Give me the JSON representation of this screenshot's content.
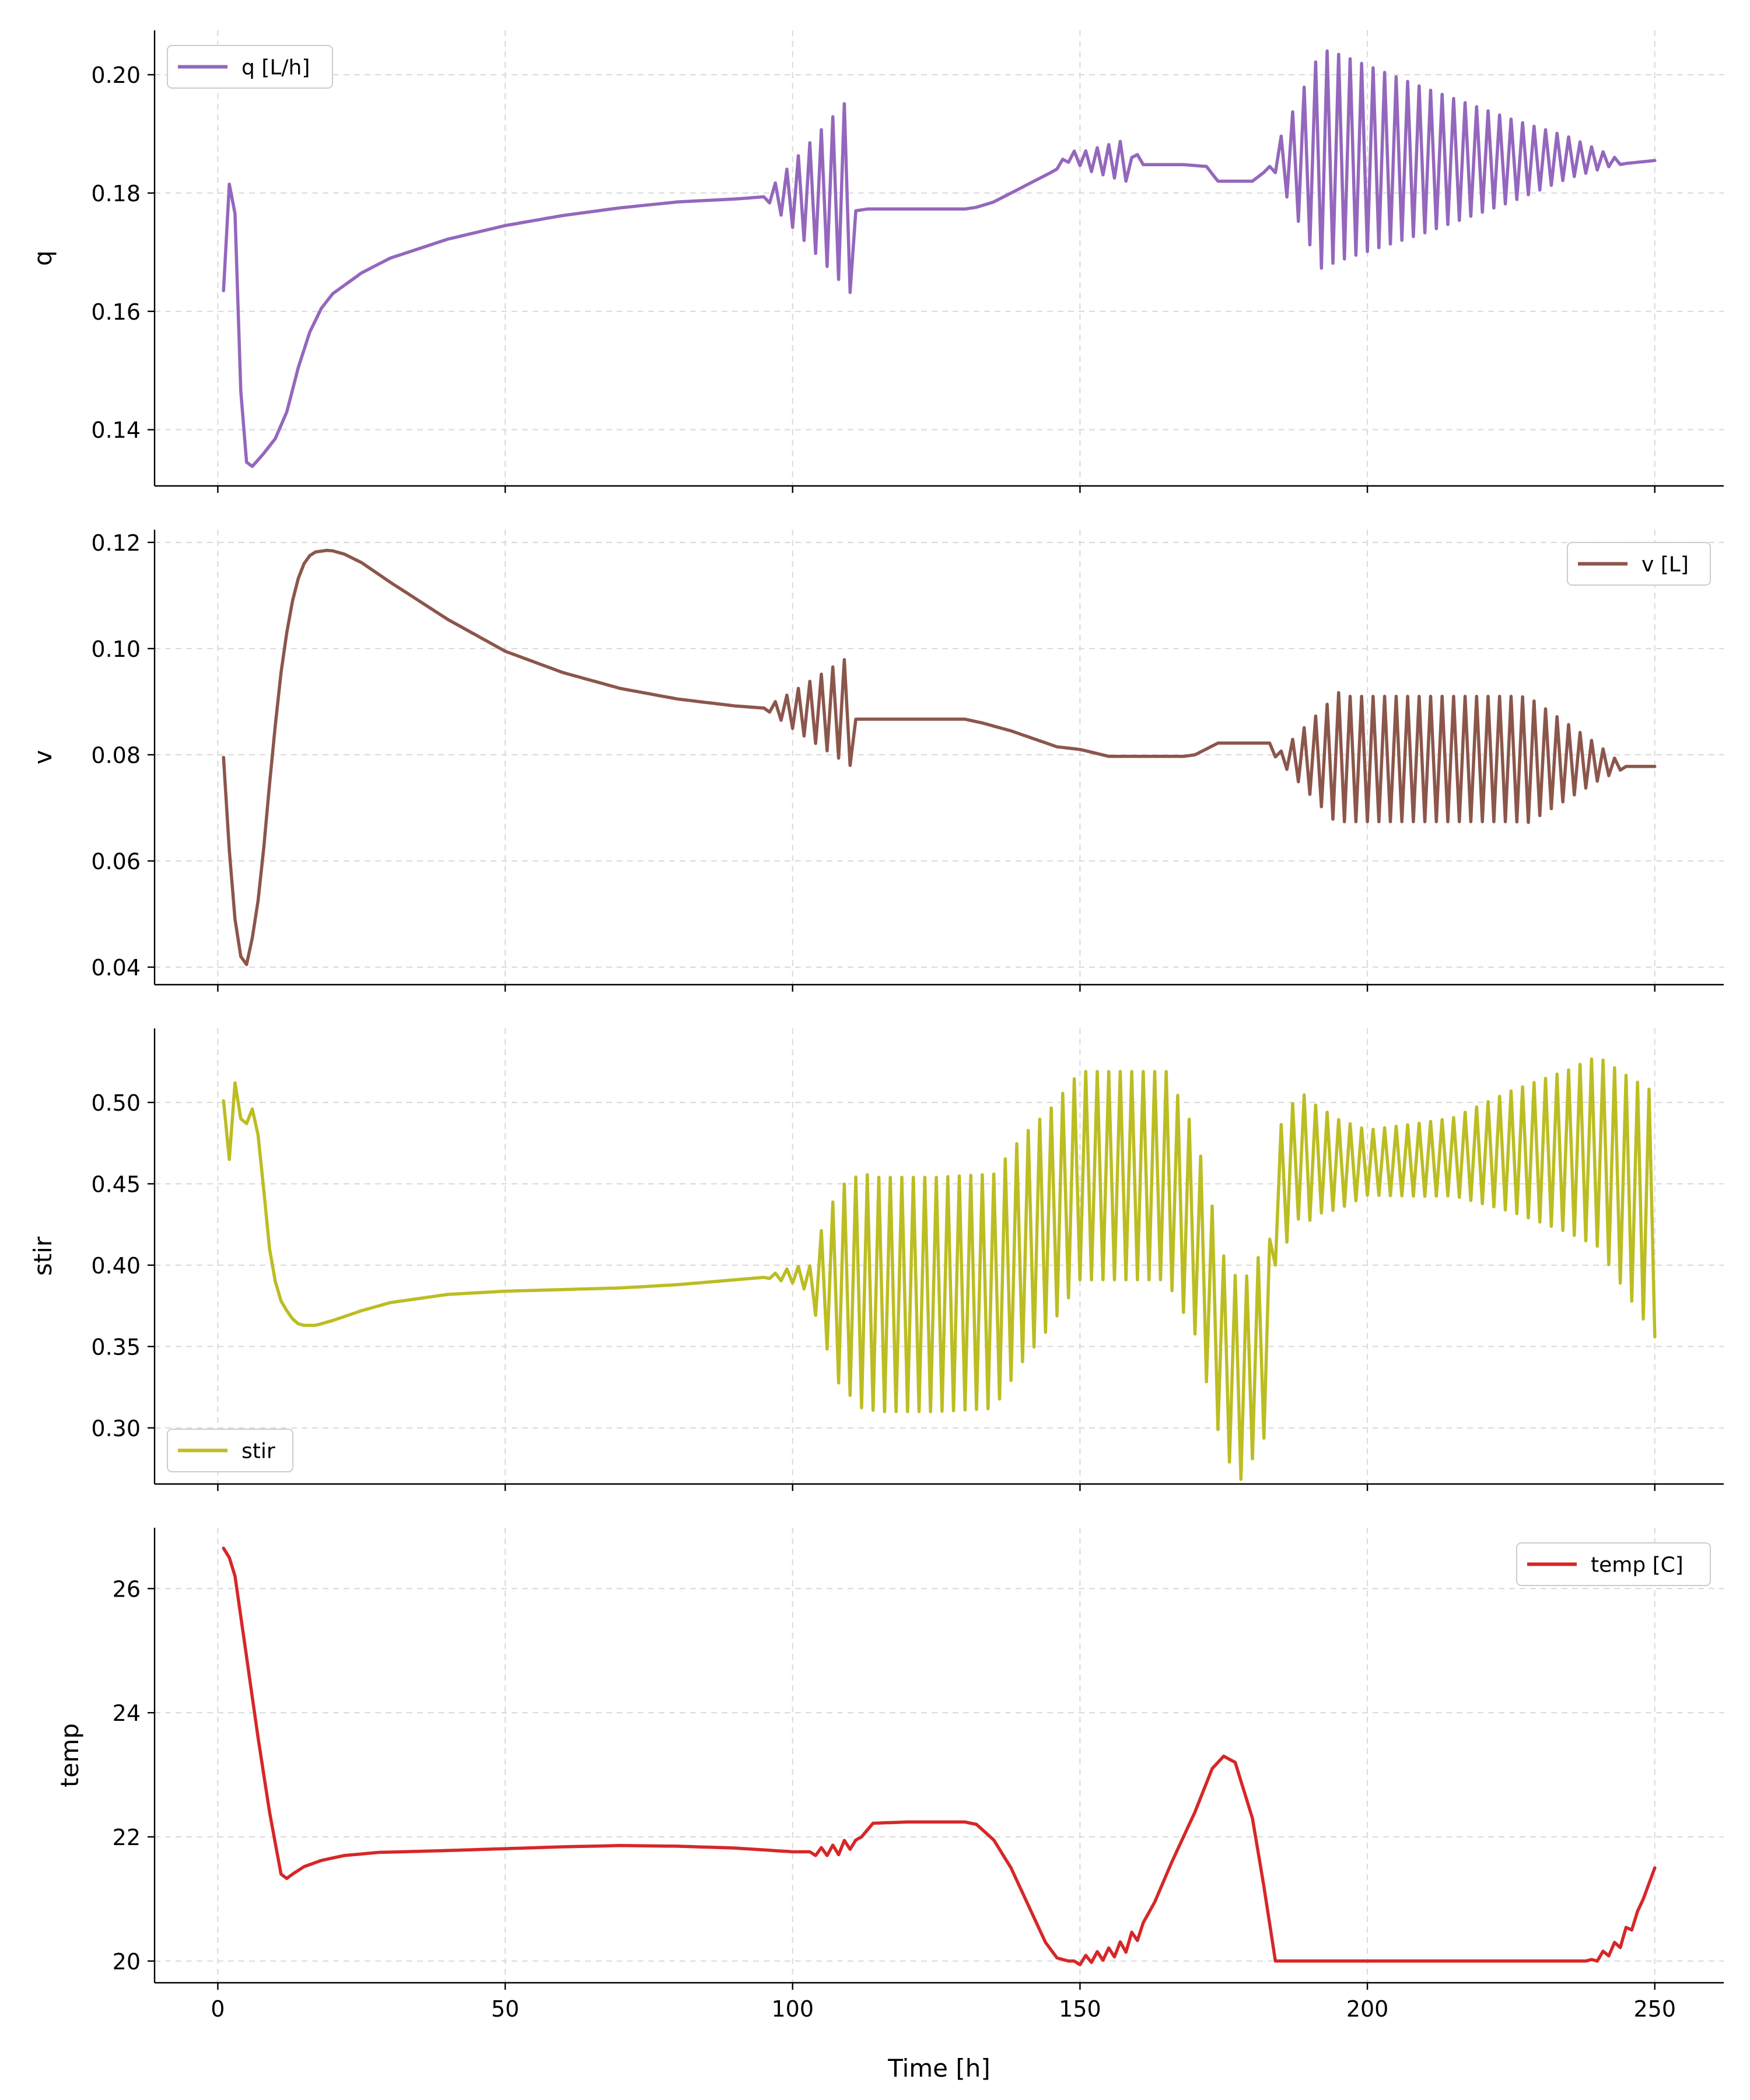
{
  "chart_data": [
    {
      "type": "line",
      "ylabel": "q",
      "xlim": [
        -11,
        262
      ],
      "ylim": [
        0.1305,
        0.2075
      ],
      "yticks": [
        "0.14",
        "0.16",
        "0.18",
        "0.20"
      ],
      "ytick_values": [
        0.14,
        0.16,
        0.18,
        0.2
      ],
      "grid": true,
      "legend_position": "upper left",
      "color": "#9467bd",
      "series": [
        {
          "name": "q [L/h]",
          "x": [],
          "y": []
        }
      ],
      "key_points": [
        [
          1,
          0.1635
        ],
        [
          2,
          0.1815
        ],
        [
          3,
          0.1765
        ],
        [
          4,
          0.1465
        ],
        [
          5,
          0.1345
        ],
        [
          6,
          0.1338
        ],
        [
          8,
          0.136
        ],
        [
          10,
          0.1385
        ],
        [
          12,
          0.143
        ],
        [
          14,
          0.1505
        ],
        [
          16,
          0.1565
        ],
        [
          18,
          0.1605
        ],
        [
          20,
          0.163
        ],
        [
          25,
          0.1665
        ],
        [
          30,
          0.169
        ],
        [
          40,
          0.1722
        ],
        [
          50,
          0.1745
        ],
        [
          60,
          0.1762
        ],
        [
          70,
          0.1775
        ],
        [
          80,
          0.1785
        ],
        [
          90,
          0.179
        ],
        [
          97,
          0.1795
        ],
        [
          100,
          0.1797
        ],
        [
          104,
          0.1797
        ],
        [
          107,
          0.1797
        ],
        [
          108.5,
          0.1797
        ],
        [
          110,
          0.1797
        ],
        [
          111,
          0.177
        ],
        [
          113,
          0.1773
        ],
        [
          120,
          0.1773
        ],
        [
          130,
          0.1773
        ],
        [
          132,
          0.1776
        ],
        [
          135,
          0.1785
        ],
        [
          140,
          0.181
        ],
        [
          145,
          0.1835
        ],
        [
          148,
          0.186
        ],
        [
          150,
          0.186
        ],
        [
          151,
          0.1855
        ],
        [
          155,
          0.1855
        ],
        [
          158,
          0.1855
        ],
        [
          160,
          0.1865
        ],
        [
          161,
          0.1848
        ],
        [
          168,
          0.1848
        ],
        [
          172,
          0.1845
        ],
        [
          174,
          0.182
        ],
        [
          180,
          0.182
        ],
        [
          182,
          0.1835
        ],
        [
          184,
          0.1855
        ],
        [
          188,
          0.1855
        ],
        [
          195,
          0.186
        ],
        [
          210,
          0.1855
        ],
        [
          225,
          0.1855
        ],
        [
          235,
          0.186
        ],
        [
          242,
          0.1855
        ],
        [
          245,
          0.185
        ],
        [
          250,
          0.1855
        ]
      ],
      "oscillations": [
        [
          95,
          110,
          0.0,
          0.0165
        ],
        [
          145,
          158,
          0.0,
          0.0035
        ],
        [
          183,
          192,
          0.0,
          0.0185
        ],
        [
          192,
          245,
          0.0185,
          0.0
        ]
      ]
    },
    {
      "type": "line",
      "ylabel": "v",
      "xlim": [
        -11,
        262
      ],
      "ylim": [
        0.0367,
        0.1224
      ],
      "yticks": [
        "0.04",
        "0.06",
        "0.08",
        "0.10",
        "0.12"
      ],
      "ytick_values": [
        0.04,
        0.06,
        0.08,
        0.1,
        0.12
      ],
      "grid": true,
      "legend_position": "upper right",
      "color": "#8c564b",
      "series": [
        {
          "name": "v [L]",
          "x": [],
          "y": []
        }
      ],
      "key_points": [
        [
          1,
          0.0795
        ],
        [
          2,
          0.062
        ],
        [
          3,
          0.049
        ],
        [
          4,
          0.042
        ],
        [
          5,
          0.0405
        ],
        [
          6,
          0.0455
        ],
        [
          7,
          0.0525
        ],
        [
          8,
          0.0625
        ],
        [
          9,
          0.0745
        ],
        [
          10,
          0.0855
        ],
        [
          11,
          0.0955
        ],
        [
          12,
          0.103
        ],
        [
          13,
          0.109
        ],
        [
          14,
          0.1132
        ],
        [
          15,
          0.116
        ],
        [
          16,
          0.1175
        ],
        [
          17,
          0.1182
        ],
        [
          19,
          0.1185
        ],
        [
          20,
          0.1184
        ],
        [
          22,
          0.1178
        ],
        [
          25,
          0.1162
        ],
        [
          30,
          0.1125
        ],
        [
          40,
          0.1055
        ],
        [
          50,
          0.0995
        ],
        [
          60,
          0.0955
        ],
        [
          70,
          0.0925
        ],
        [
          80,
          0.0905
        ],
        [
          90,
          0.0892
        ],
        [
          100,
          0.0884
        ],
        [
          105,
          0.0883
        ],
        [
          110,
          0.0883
        ],
        [
          111,
          0.0867
        ],
        [
          120,
          0.0867
        ],
        [
          130,
          0.0867
        ],
        [
          133,
          0.086
        ],
        [
          138,
          0.0845
        ],
        [
          142,
          0.083
        ],
        [
          146,
          0.0815
        ],
        [
          150,
          0.081
        ],
        [
          152,
          0.0805
        ],
        [
          155,
          0.0797
        ],
        [
          160,
          0.0797
        ],
        [
          168,
          0.0797
        ],
        [
          170,
          0.08
        ],
        [
          174,
          0.0822
        ],
        [
          180,
          0.0822
        ],
        [
          183,
          0.0822
        ],
        [
          184,
          0.0796
        ],
        [
          195,
          0.0792
        ],
        [
          210,
          0.0792
        ],
        [
          225,
          0.0792
        ],
        [
          240,
          0.0785
        ],
        [
          244,
          0.0778
        ],
        [
          250,
          0.0778
        ]
      ],
      "oscillations": [
        [
          95,
          110,
          0.0,
          0.0103
        ],
        [
          184,
          195,
          0.0,
          0.0125
        ],
        [
          195,
          228,
          0.0118,
          0.0118
        ],
        [
          228,
          245,
          0.0118,
          0.0
        ]
      ]
    },
    {
      "type": "line",
      "ylabel": "stir",
      "xlim": [
        -11,
        262
      ],
      "ylim": [
        0.2655,
        0.5455
      ],
      "yticks": [
        "0.30",
        "0.35",
        "0.40",
        "0.45",
        "0.50"
      ],
      "ytick_values": [
        0.3,
        0.35,
        0.4,
        0.45,
        0.5
      ],
      "grid": true,
      "legend_position": "lower left",
      "color": "#bcbd22",
      "series": [
        {
          "name": "stir",
          "x": [],
          "y": []
        }
      ],
      "key_points": [
        [
          1,
          0.501
        ],
        [
          2,
          0.465
        ],
        [
          3,
          0.512
        ],
        [
          4,
          0.49
        ],
        [
          5,
          0.487
        ],
        [
          6,
          0.496
        ],
        [
          7,
          0.48
        ],
        [
          8,
          0.446
        ],
        [
          9,
          0.41
        ],
        [
          10,
          0.39
        ],
        [
          11,
          0.378
        ],
        [
          12,
          0.372
        ],
        [
          13,
          0.367
        ],
        [
          14,
          0.364
        ],
        [
          15,
          0.363
        ],
        [
          17,
          0.363
        ],
        [
          20,
          0.366
        ],
        [
          25,
          0.372
        ],
        [
          30,
          0.377
        ],
        [
          40,
          0.382
        ],
        [
          50,
          0.384
        ],
        [
          60,
          0.385
        ],
        [
          70,
          0.386
        ],
        [
          80,
          0.388
        ],
        [
          90,
          0.391
        ],
        [
          100,
          0.394
        ],
        [
          105,
          0.39
        ],
        [
          110,
          0.386
        ],
        [
          115,
          0.382
        ],
        [
          125,
          0.382
        ],
        [
          135,
          0.384
        ],
        [
          140,
          0.41
        ],
        [
          145,
          0.43
        ],
        [
          150,
          0.455
        ],
        [
          160,
          0.455
        ],
        [
          165,
          0.455
        ],
        [
          170,
          0.42
        ],
        [
          175,
          0.345
        ],
        [
          178,
          0.328
        ],
        [
          183,
          0.358
        ],
        [
          184,
          0.44
        ],
        [
          188,
          0.467
        ],
        [
          195,
          0.462
        ],
        [
          210,
          0.465
        ],
        [
          225,
          0.47
        ],
        [
          240,
          0.47
        ],
        [
          245,
          0.45
        ],
        [
          250,
          0.431
        ]
      ],
      "oscillations": [
        [
          95,
          103,
          0.0,
          0.008
        ],
        [
          103,
          108,
          0.012,
          0.06
        ],
        [
          108,
          112,
          0.06,
          0.072
        ],
        [
          112,
          135,
          0.072,
          0.072
        ],
        [
          135,
          150,
          0.072,
          0.064
        ],
        [
          150,
          165,
          0.064,
          0.064
        ],
        [
          165,
          183,
          0.064,
          0.058
        ],
        [
          184,
          190,
          0.04,
          0.038
        ],
        [
          190,
          200,
          0.035,
          0.02
        ],
        [
          200,
          215,
          0.02,
          0.024
        ],
        [
          215,
          235,
          0.024,
          0.05
        ],
        [
          235,
          250,
          0.05,
          0.075
        ]
      ]
    },
    {
      "type": "line",
      "ylabel": "temp",
      "xlabel": "Time [h]",
      "xlim": [
        -11,
        262
      ],
      "xticks": [
        "0",
        "50",
        "100",
        "150",
        "200",
        "250"
      ],
      "xtick_values": [
        0,
        50,
        100,
        150,
        200,
        250
      ],
      "ylim": [
        19.65,
        26.98
      ],
      "yticks": [
        "20",
        "22",
        "24",
        "26"
      ],
      "ytick_values": [
        20,
        22,
        24,
        26
      ],
      "grid": true,
      "legend_position": "upper right",
      "color": "#d62728",
      "series": [
        {
          "name": "temp [C]",
          "x": [],
          "y": []
        }
      ],
      "key_points": [
        [
          1,
          26.65
        ],
        [
          2,
          26.5
        ],
        [
          3,
          26.2
        ],
        [
          5,
          24.9
        ],
        [
          7,
          23.6
        ],
        [
          9,
          22.4
        ],
        [
          11,
          21.4
        ],
        [
          12,
          21.33
        ],
        [
          13,
          21.4
        ],
        [
          15,
          21.52
        ],
        [
          18,
          21.62
        ],
        [
          22,
          21.7
        ],
        [
          28,
          21.75
        ],
        [
          40,
          21.78
        ],
        [
          50,
          21.81
        ],
        [
          60,
          21.84
        ],
        [
          70,
          21.86
        ],
        [
          80,
          21.85
        ],
        [
          90,
          21.82
        ],
        [
          100,
          21.76
        ],
        [
          105,
          21.76
        ],
        [
          108,
          21.8
        ],
        [
          110,
          21.9
        ],
        [
          112,
          22.0
        ],
        [
          114,
          22.22
        ],
        [
          120,
          22.24
        ],
        [
          130,
          22.24
        ],
        [
          132,
          22.2
        ],
        [
          135,
          21.95
        ],
        [
          138,
          21.5
        ],
        [
          140,
          21.1
        ],
        [
          142,
          20.7
        ],
        [
          144,
          20.3
        ],
        [
          146,
          20.05
        ],
        [
          148,
          20.0
        ],
        [
          150,
          20.0
        ],
        [
          152,
          20.05
        ],
        [
          155,
          20.12
        ],
        [
          158,
          20.25
        ],
        [
          160,
          20.45
        ],
        [
          163,
          20.95
        ],
        [
          166,
          21.6
        ],
        [
          170,
          22.4
        ],
        [
          173,
          23.1
        ],
        [
          175,
          23.3
        ],
        [
          177,
          23.2
        ],
        [
          180,
          22.3
        ],
        [
          182,
          21.2
        ],
        [
          184,
          20.0
        ],
        [
          190,
          20.0
        ],
        [
          210,
          20.0
        ],
        [
          230,
          20.0
        ],
        [
          238,
          20.0
        ],
        [
          240,
          20.05
        ],
        [
          242,
          20.15
        ],
        [
          244,
          20.3
        ],
        [
          246,
          20.6
        ],
        [
          248,
          21.0
        ],
        [
          250,
          21.5
        ]
      ],
      "oscillations": [
        [
          104,
          110,
          0.06,
          0.1
        ],
        [
          150,
          160,
          0.06,
          0.12
        ],
        [
          240,
          246,
          0.05,
          0.1
        ]
      ]
    }
  ]
}
